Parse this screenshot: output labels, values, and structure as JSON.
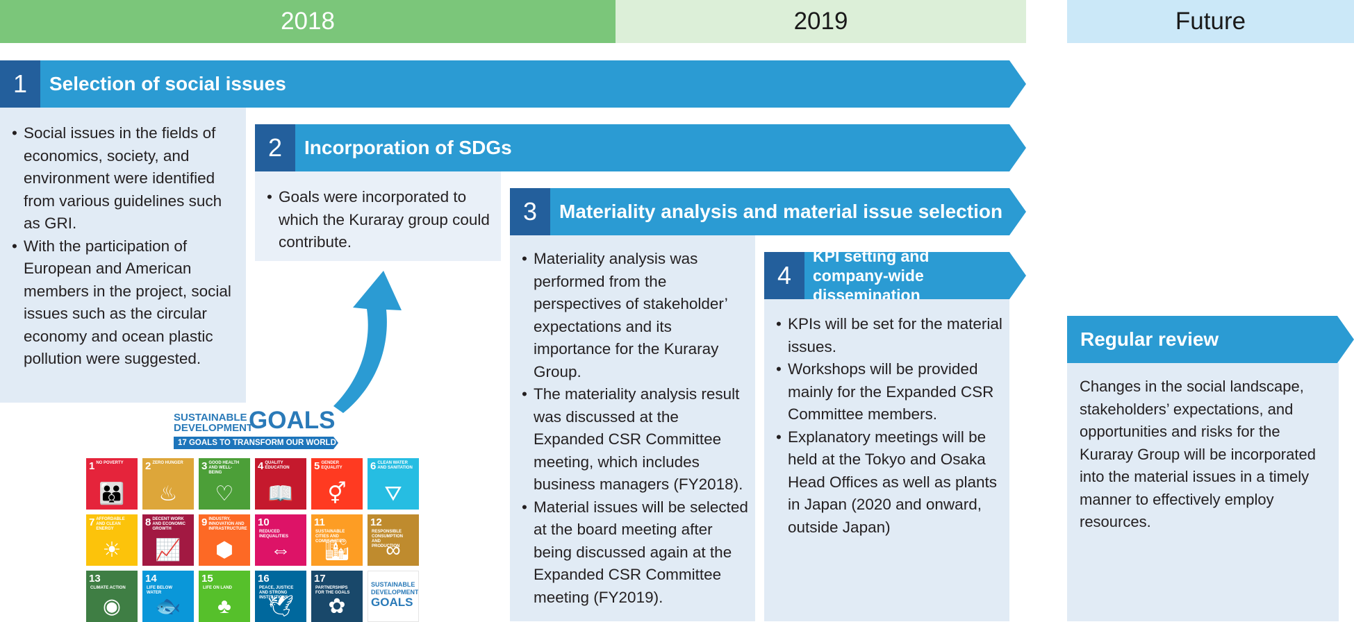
{
  "years": {
    "y2018": "2018",
    "y2019": "2019",
    "future": "Future"
  },
  "steps": [
    {
      "number": "1",
      "title": "Selection of social issues",
      "bullets": [
        "Social issues in the fields of economics, society, and environment were identified from various guidelines such as GRI.",
        "With the participation of European and American members in the project, social issues such as the circular economy and ocean plastic pollution were suggested."
      ]
    },
    {
      "number": "2",
      "title": "Incorporation of SDGs",
      "bullets": [
        "Goals were incorporated to which the Kuraray group could contribute."
      ]
    },
    {
      "number": "3",
      "title": "Materiality analysis and material issue selection",
      "bullets": [
        "Materiality analysis was performed from the perspectives of stakeholder’ expectations and its importance for the Kuraray Group.",
        "The materiality analysis result was discussed at the Expanded CSR Committee meeting, which includes business managers (FY2018).",
        "Material issues will be selected at the board meeting after being discussed again at the Expanded CSR Committee meeting (FY2019)."
      ]
    },
    {
      "number": "4",
      "title": "KPI setting and company-wide dissemination",
      "bullets": [
        "KPIs will be set for the material issues.",
        "Workshops will be provided mainly for the Expanded CSR Committee members.",
        "Explanatory meetings will be held at the Tokyo and Osaka Head Offices as well as plants in Japan (2020 and onward, outside Japan)"
      ]
    }
  ],
  "review": {
    "title": "Regular review",
    "body": "Changes in the social landscape, stakeholders’ expectations, and opportunities and risks for the Kuraray Group will be incorporated into the material issues in a timely manner to effectively employ resources."
  },
  "sdg": {
    "logo_line1": "SUSTAINABLE",
    "logo_line2": "DEVELOPMENT",
    "logo_goals": "GOALS",
    "subtitle": "17 GOALS TO TRANSFORM OUR WORLD",
    "tiles": [
      {
        "n": "1",
        "t": "No poverty",
        "color": "#e5243b",
        "icon": "family-icon",
        "glyph": "👪"
      },
      {
        "n": "2",
        "t": "Zero hunger",
        "color": "#dda63a",
        "icon": "bowl-icon",
        "glyph": "♨"
      },
      {
        "n": "3",
        "t": "Good health and well-being",
        "color": "#4c9f38",
        "icon": "heartbeat-icon",
        "glyph": "♡"
      },
      {
        "n": "4",
        "t": "Quality education",
        "color": "#c5192d",
        "icon": "book-icon",
        "glyph": "📖"
      },
      {
        "n": "5",
        "t": "Gender equality",
        "color": "#ff3a21",
        "icon": "gender-icon",
        "glyph": "⚥"
      },
      {
        "n": "6",
        "t": "Clean water and sanitation",
        "color": "#26bde2",
        "icon": "water-drop-icon",
        "glyph": "⛛"
      },
      {
        "n": "7",
        "t": "Affordable and clean energy",
        "color": "#fcc30b",
        "icon": "sun-icon",
        "glyph": "☀"
      },
      {
        "n": "8",
        "t": "Decent work and economic growth",
        "color": "#a21942",
        "icon": "growth-chart-icon",
        "glyph": "📈"
      },
      {
        "n": "9",
        "t": "Industry, innovation and infrastructure",
        "color": "#fd6925",
        "icon": "cubes-icon",
        "glyph": "⬢"
      },
      {
        "n": "10",
        "t": "Reduced inequalities",
        "color": "#dd1367",
        "icon": "equal-icon",
        "glyph": "⇔"
      },
      {
        "n": "11",
        "t": "Sustainable cities and communities",
        "color": "#fd9d24",
        "icon": "city-icon",
        "glyph": "🏙"
      },
      {
        "n": "12",
        "t": "Responsible consumption and production",
        "color": "#bf8b2e",
        "icon": "infinity-icon",
        "glyph": "∞"
      },
      {
        "n": "13",
        "t": "Climate action",
        "color": "#3f7e44",
        "icon": "eye-globe-icon",
        "glyph": "◉"
      },
      {
        "n": "14",
        "t": "Life below water",
        "color": "#0a97d9",
        "icon": "fish-icon",
        "glyph": "🐟"
      },
      {
        "n": "15",
        "t": "Life on land",
        "color": "#56c02b",
        "icon": "tree-icon",
        "glyph": "♣"
      },
      {
        "n": "16",
        "t": "Peace, justice and strong institutions",
        "color": "#00689d",
        "icon": "dove-icon",
        "glyph": "🕊"
      },
      {
        "n": "17",
        "t": "Partnerships for the goals",
        "color": "#19486a",
        "icon": "rings-icon",
        "glyph": "✿"
      }
    ],
    "colors": [
      "#e5243b",
      "#dda63a",
      "#4c9f38",
      "#c5192d",
      "#ff3a21",
      "#26bde2",
      "#fcc30b",
      "#a21942",
      "#fd6925",
      "#dd1367",
      "#fd9d24",
      "#bf8b2e",
      "#3f7e44",
      "#0a97d9",
      "#56c02b",
      "#00689d",
      "#19486a"
    ]
  },
  "colors": {
    "y2018": "#7bc67a",
    "y2019": "#dcefd8",
    "future": "#cbe8f8",
    "arrow": "#2b9bd3",
    "numbox": "#235f9c",
    "panel": "#e1ebf5"
  }
}
